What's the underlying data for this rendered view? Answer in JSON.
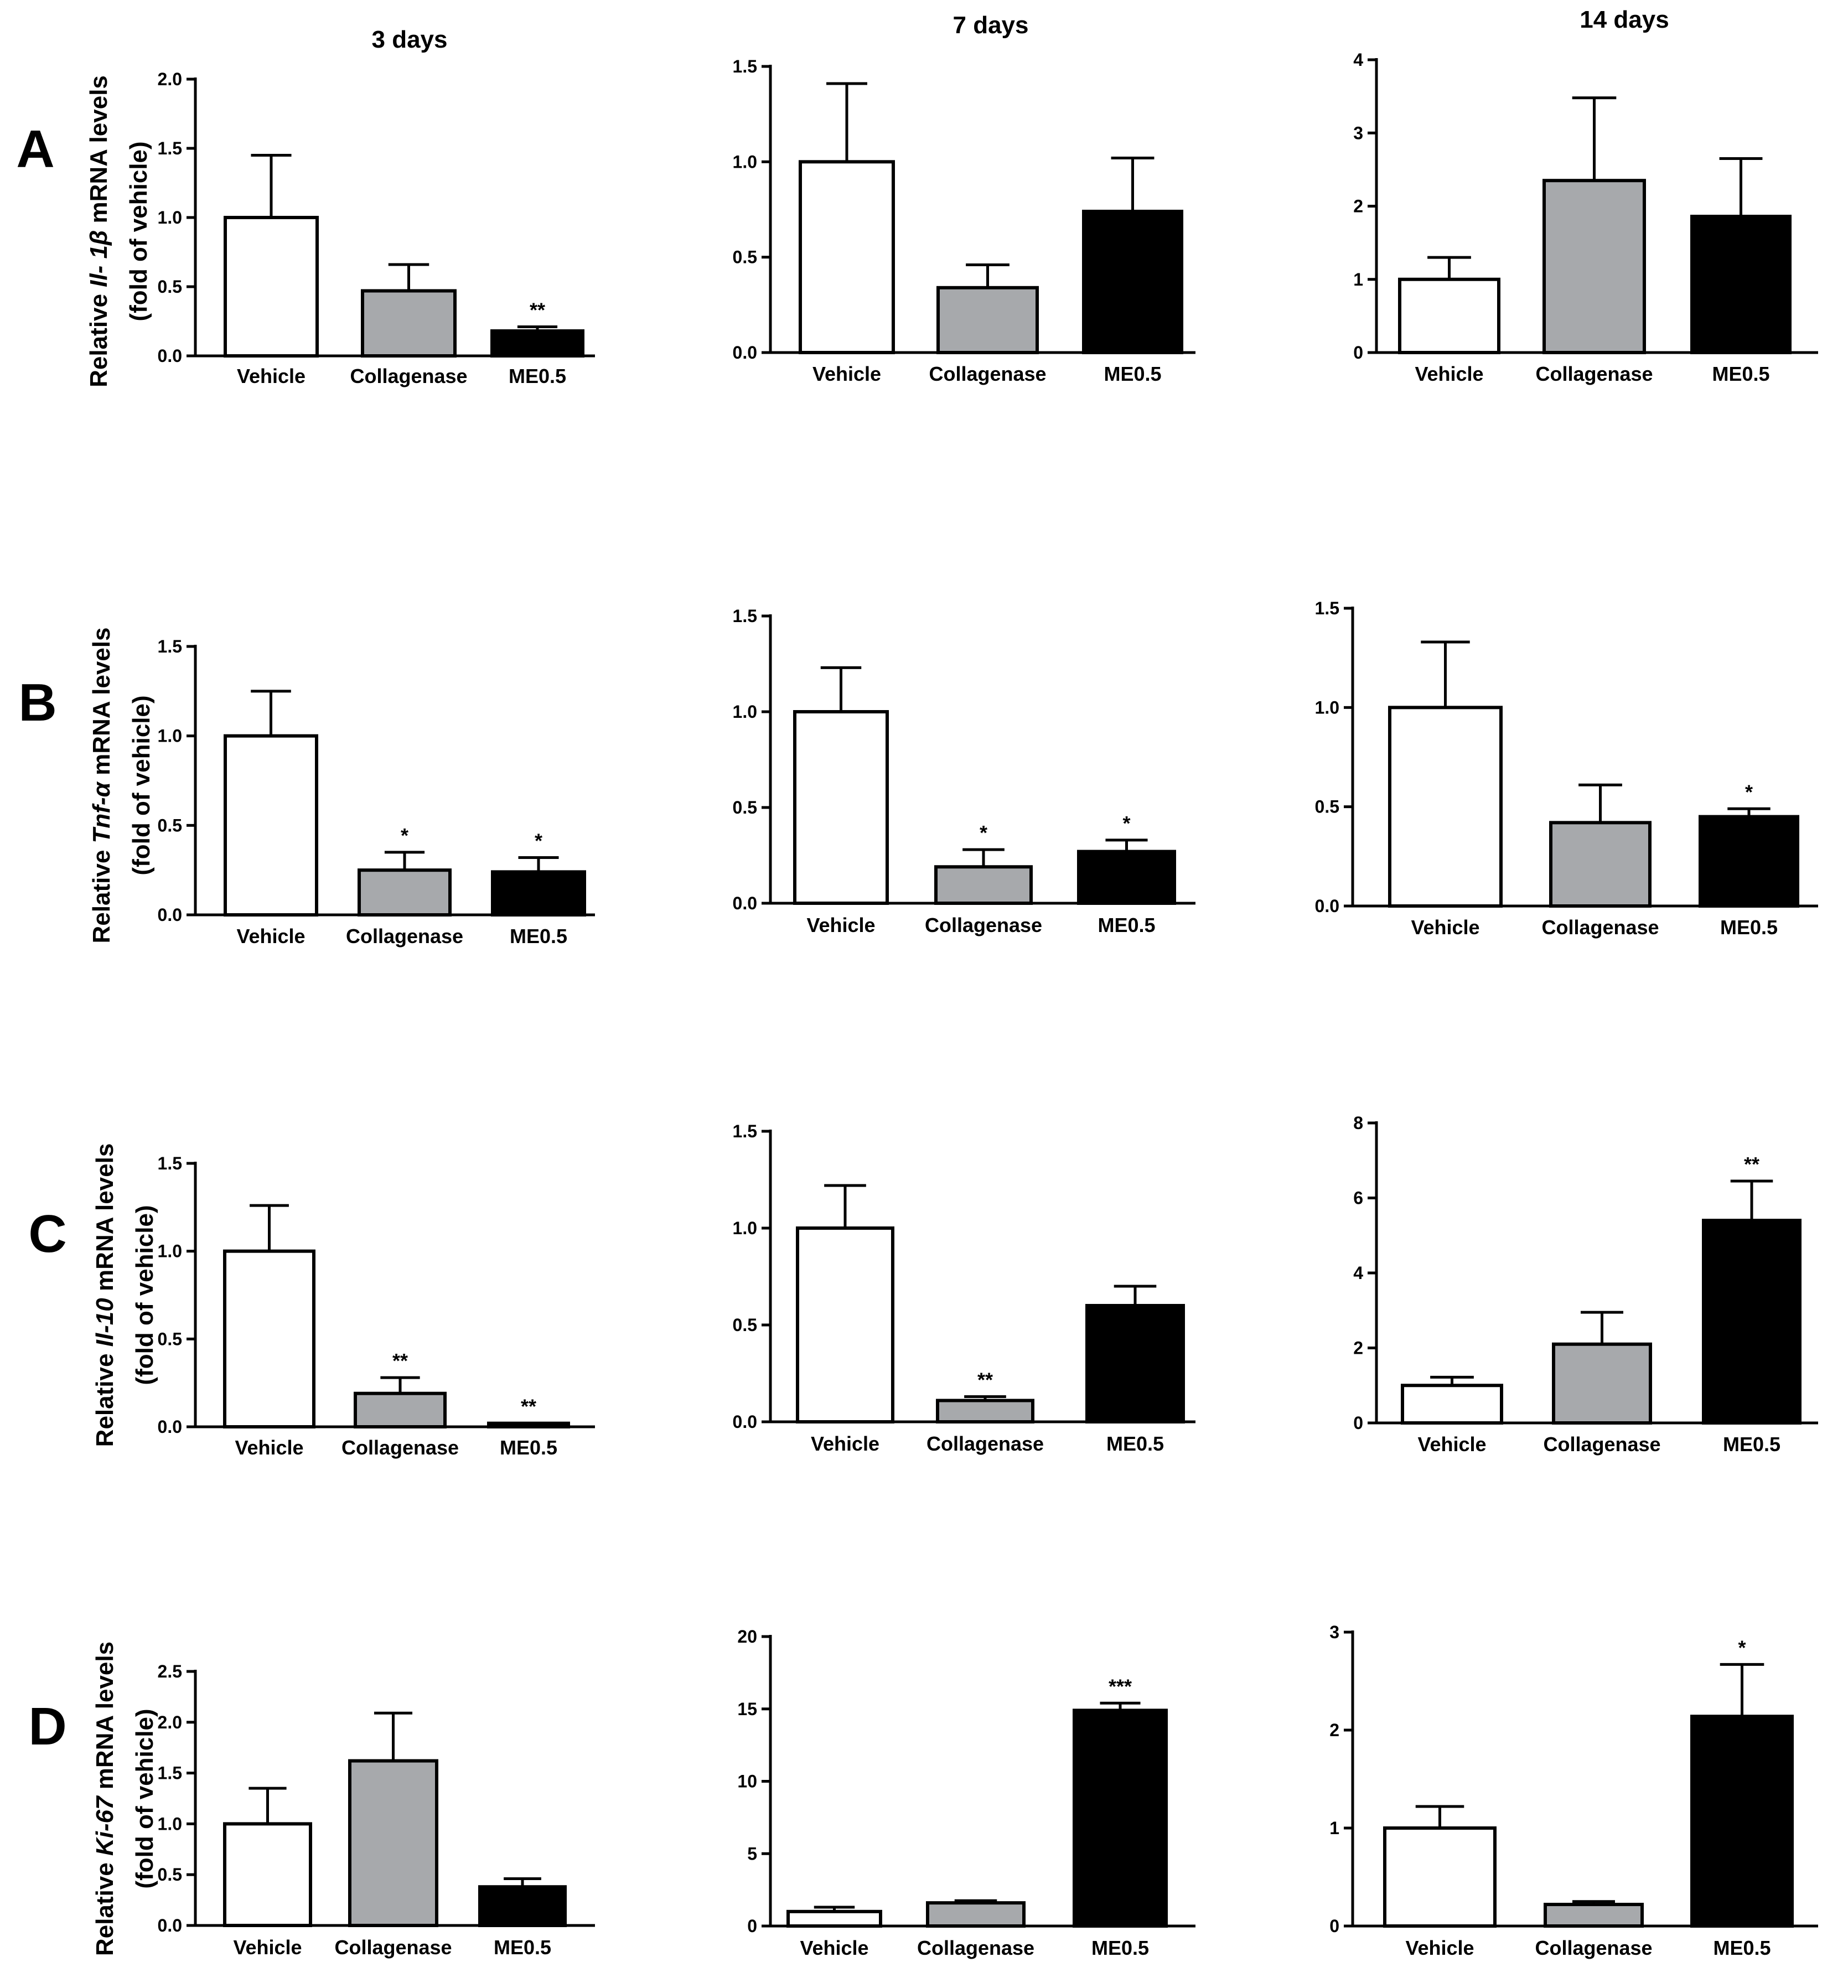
{
  "columns": [
    "3 days",
    "7 days",
    "14 days"
  ],
  "rows": [
    {
      "letter": "A",
      "ylabel": {
        "pre": "Relative ",
        "gene": "Il- 1β",
        "post": " mRNA levels",
        "line2": "(fold of vehicle)"
      }
    },
    {
      "letter": "B",
      "ylabel": {
        "pre": "Relative ",
        "gene": "Tnf-α",
        "post": " mRNA levels",
        "line2": "(fold of vehicle)"
      }
    },
    {
      "letter": "C",
      "ylabel": {
        "pre": "Relative ",
        "gene": "Il-10",
        "post": " mRNA levels",
        "line2": "(fold of vehicle)"
      }
    },
    {
      "letter": "D",
      "ylabel": {
        "pre": "Relative ",
        "gene": "Ki-67",
        "post": " mRNA levels",
        "line2": "(fold of vehicle)"
      }
    }
  ],
  "colors": {
    "Vehicle": "#ffffff",
    "Collagenase": "#a7a9ac",
    "ME0.5": "#000000",
    "axis": "#000000"
  },
  "chart_data": [
    {
      "type": "bar",
      "row": "A",
      "column": "3 days",
      "categories": [
        "Vehicle",
        "Collagenase",
        "ME0.5"
      ],
      "values": [
        1.0,
        0.47,
        0.18
      ],
      "errors": [
        0.45,
        0.19,
        0.03
      ],
      "significance": [
        "",
        "",
        "**"
      ],
      "yticks": [
        "0.0",
        "0.5",
        "1.0",
        "1.5",
        "2.0"
      ],
      "ylim": [
        0,
        2.0
      ]
    },
    {
      "type": "bar",
      "row": "A",
      "column": "7 days",
      "categories": [
        "Vehicle",
        "Collagenase",
        "ME0.5"
      ],
      "values": [
        1.0,
        0.34,
        0.74
      ],
      "errors": [
        0.41,
        0.12,
        0.28
      ],
      "significance": [
        "",
        "",
        ""
      ],
      "yticks": [
        "0.0",
        "0.5",
        "1.0",
        "1.5"
      ],
      "ylim": [
        0,
        1.5
      ]
    },
    {
      "type": "bar",
      "row": "A",
      "column": "14 days",
      "categories": [
        "Vehicle",
        "Collagenase",
        "ME0.5"
      ],
      "values": [
        1.0,
        2.35,
        1.86
      ],
      "errors": [
        0.3,
        1.13,
        0.79
      ],
      "significance": [
        "",
        "",
        ""
      ],
      "yticks": [
        "0",
        "1",
        "2",
        "3",
        "4"
      ],
      "ylim": [
        0,
        4
      ]
    },
    {
      "type": "bar",
      "row": "B",
      "column": "3 days",
      "categories": [
        "Vehicle",
        "Collagenase",
        "ME0.5"
      ],
      "values": [
        1.0,
        0.25,
        0.24
      ],
      "errors": [
        0.25,
        0.1,
        0.08
      ],
      "significance": [
        "",
        "*",
        "*"
      ],
      "yticks": [
        "0.0",
        "0.5",
        "1.0",
        "1.5"
      ],
      "ylim": [
        0,
        1.5
      ]
    },
    {
      "type": "bar",
      "row": "B",
      "column": "7 days",
      "categories": [
        "Vehicle",
        "Collagenase",
        "ME0.5"
      ],
      "values": [
        1.0,
        0.19,
        0.27
      ],
      "errors": [
        0.23,
        0.09,
        0.06
      ],
      "significance": [
        "",
        "*",
        "*"
      ],
      "yticks": [
        "0.0",
        "0.5",
        "1.0",
        "1.5"
      ],
      "ylim": [
        0,
        1.5
      ]
    },
    {
      "type": "bar",
      "row": "B",
      "column": "14 days",
      "categories": [
        "Vehicle",
        "Collagenase",
        "ME0.5"
      ],
      "values": [
        1.0,
        0.42,
        0.45
      ],
      "errors": [
        0.33,
        0.19,
        0.04
      ],
      "significance": [
        "",
        "",
        "*"
      ],
      "yticks": [
        "0.0",
        "0.5",
        "1.0",
        "1.5"
      ],
      "ylim": [
        0,
        1.5
      ]
    },
    {
      "type": "bar",
      "row": "C",
      "column": "3 days",
      "categories": [
        "Vehicle",
        "Collagenase",
        "ME0.5"
      ],
      "values": [
        1.0,
        0.19,
        0.02
      ],
      "errors": [
        0.26,
        0.09,
        0.0
      ],
      "significance": [
        "",
        "**",
        "**"
      ],
      "yticks": [
        "0.0",
        "0.5",
        "1.0",
        "1.5"
      ],
      "ylim": [
        0,
        1.5
      ]
    },
    {
      "type": "bar",
      "row": "C",
      "column": "7 days",
      "categories": [
        "Vehicle",
        "Collagenase",
        "ME0.5"
      ],
      "values": [
        1.0,
        0.11,
        0.6
      ],
      "errors": [
        0.22,
        0.02,
        0.1
      ],
      "significance": [
        "",
        "**",
        ""
      ],
      "yticks": [
        "0.0",
        "0.5",
        "1.0",
        "1.5"
      ],
      "ylim": [
        0,
        1.5
      ]
    },
    {
      "type": "bar",
      "row": "C",
      "column": "14 days",
      "categories": [
        "Vehicle",
        "Collagenase",
        "ME0.5"
      ],
      "values": [
        1.0,
        2.1,
        5.4
      ],
      "errors": [
        0.22,
        0.85,
        1.05
      ],
      "significance": [
        "",
        "",
        "**"
      ],
      "yticks": [
        "0",
        "2",
        "4",
        "6",
        "8"
      ],
      "ylim": [
        0,
        8
      ]
    },
    {
      "type": "bar",
      "row": "D",
      "column": "3 days",
      "categories": [
        "Vehicle",
        "Collagenase",
        "ME0.5"
      ],
      "values": [
        1.0,
        1.62,
        0.38
      ],
      "errors": [
        0.35,
        0.47,
        0.08
      ],
      "significance": [
        "",
        "",
        ""
      ],
      "yticks": [
        "0.0",
        "0.5",
        "1.0",
        "1.5",
        "2.0",
        "2.5"
      ],
      "ylim": [
        0,
        2.5
      ]
    },
    {
      "type": "bar",
      "row": "D",
      "column": "7 days",
      "categories": [
        "Vehicle",
        "Collagenase",
        "ME0.5"
      ],
      "values": [
        1.0,
        1.6,
        14.9
      ],
      "errors": [
        0.3,
        0.15,
        0.5
      ],
      "significance": [
        "",
        "",
        "***"
      ],
      "yticks": [
        "0",
        "5",
        "10",
        "15",
        "20"
      ],
      "ylim": [
        0,
        20
      ]
    },
    {
      "type": "bar",
      "row": "D",
      "column": "14 days",
      "categories": [
        "Vehicle",
        "Collagenase",
        "ME0.5"
      ],
      "values": [
        1.0,
        0.22,
        2.14
      ],
      "errors": [
        0.22,
        0.03,
        0.53
      ],
      "significance": [
        "",
        "",
        "*"
      ],
      "yticks": [
        "0",
        "1",
        "2",
        "3"
      ],
      "ylim": [
        0,
        3
      ]
    }
  ]
}
